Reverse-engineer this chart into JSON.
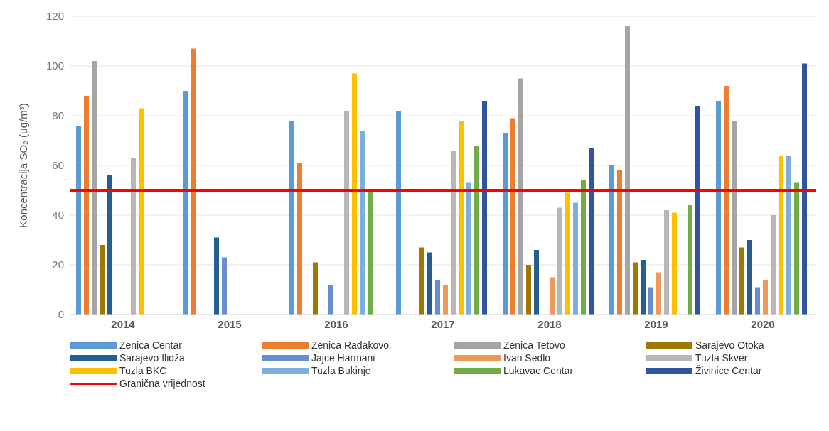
{
  "chart_data": {
    "type": "bar",
    "ylabel": "Koncentracija SO₂ (μg/m³)",
    "categories": [
      "2014",
      "2015",
      "2016",
      "2017",
      "2018",
      "2019",
      "2020"
    ],
    "series": [
      {
        "name": "Zenica Centar",
        "color": "#5b9bd5",
        "values": [
          76,
          90,
          78,
          82,
          73,
          60,
          86
        ]
      },
      {
        "name": "Zenica Radakovo",
        "color": "#ed7d31",
        "values": [
          88,
          107,
          61,
          null,
          79,
          58,
          92
        ]
      },
      {
        "name": "Zenica Tetovo",
        "color": "#a5a5a5",
        "values": [
          102,
          null,
          null,
          null,
          95,
          116,
          78
        ]
      },
      {
        "name": "Sarajevo Otoka",
        "color": "#9e7800",
        "values": [
          28,
          null,
          21,
          27,
          20,
          21,
          27
        ]
      },
      {
        "name": "Sarajevo Ilidža",
        "color": "#255e91",
        "values": [
          56,
          31,
          null,
          25,
          26,
          22,
          30
        ]
      },
      {
        "name": "Jajce Harmani",
        "color": "#698ed0",
        "values": [
          null,
          23,
          12,
          14,
          null,
          11,
          11
        ]
      },
      {
        "name": "Ivan Sedlo",
        "color": "#f1975a",
        "values": [
          null,
          null,
          null,
          12,
          15,
          17,
          14
        ]
      },
      {
        "name": "Tuzla Skver",
        "color": "#b7b7b7",
        "values": [
          63,
          null,
          82,
          66,
          43,
          42,
          40
        ]
      },
      {
        "name": "Tuzla BKC",
        "color": "#ffc000",
        "values": [
          83,
          null,
          97,
          78,
          49,
          41,
          64
        ]
      },
      {
        "name": "Tuzla Bukinje",
        "color": "#7cafdd",
        "values": [
          null,
          null,
          74,
          53,
          45,
          null,
          64
        ]
      },
      {
        "name": "Lukavac Centar",
        "color": "#70ad47",
        "values": [
          null,
          null,
          50,
          68,
          54,
          44,
          53
        ]
      },
      {
        "name": "Živinice Centar",
        "color": "#2f55a0",
        "values": [
          null,
          null,
          null,
          86,
          67,
          84,
          101
        ]
      }
    ],
    "ref_lines": [
      {
        "axis": "y",
        "value": 50,
        "label": "Granična vrijednost",
        "color": "#ff0000"
      }
    ],
    "ylim": [
      0,
      120
    ],
    "yticks": [
      0,
      20,
      40,
      60,
      80,
      100,
      120
    ],
    "grid": "y",
    "legend": "bottom"
  }
}
